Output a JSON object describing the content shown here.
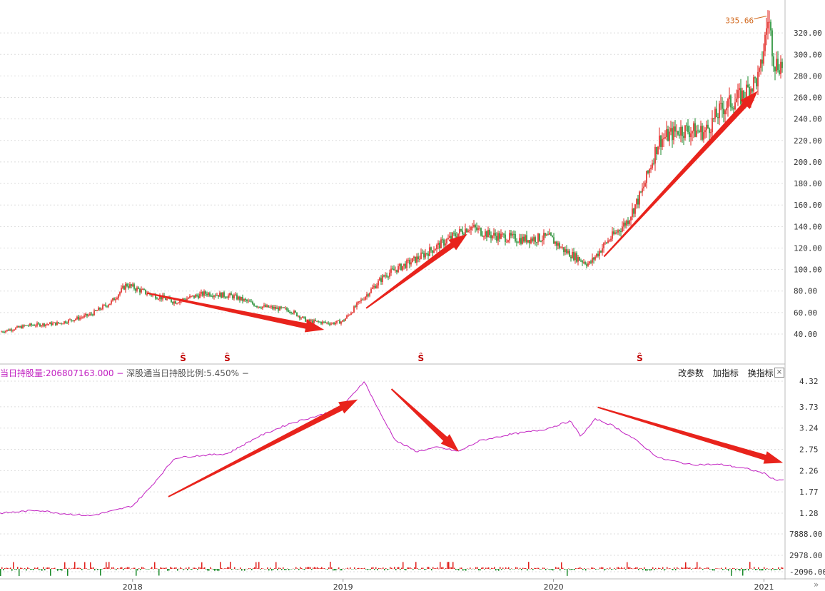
{
  "chart_data": [
    {
      "type": "candlestick",
      "yticks": [
        "320.00",
        "300.00",
        "280.00",
        "260.00",
        "240.00",
        "220.00",
        "200.00",
        "180.00",
        "160.00",
        "140.00",
        "120.00",
        "100.00",
        "80.00",
        "60.00",
        "40.00"
      ],
      "max_label": "335.66",
      "marker_symbol": "Ŝ",
      "markers_year": [
        2018.24,
        2018.45,
        2019.37,
        2020.41
      ],
      "series": [
        {
          "anchors": [
            [
              2017.37,
              42
            ],
            [
              2017.5,
              48
            ],
            [
              2017.65,
              50
            ],
            [
              2017.8,
              58
            ],
            [
              2017.9,
              70
            ],
            [
              2017.97,
              86
            ],
            [
              2018.07,
              78
            ],
            [
              2018.2,
              70
            ],
            [
              2018.35,
              78
            ],
            [
              2018.48,
              75
            ],
            [
              2018.6,
              66
            ],
            [
              2018.75,
              62
            ],
            [
              2018.83,
              52
            ],
            [
              2018.95,
              50
            ],
            [
              2019.0,
              52
            ],
            [
              2019.08,
              70
            ],
            [
              2019.2,
              95
            ],
            [
              2019.35,
              110
            ],
            [
              2019.5,
              128
            ],
            [
              2019.6,
              140
            ],
            [
              2019.7,
              132
            ],
            [
              2019.85,
              128
            ],
            [
              2019.98,
              130
            ],
            [
              2020.05,
              118
            ],
            [
              2020.12,
              110
            ],
            [
              2020.17,
              105
            ],
            [
              2020.25,
              125
            ],
            [
              2020.35,
              145
            ],
            [
              2020.42,
              172
            ],
            [
              2020.5,
              220
            ],
            [
              2020.6,
              230
            ],
            [
              2020.72,
              228
            ],
            [
              2020.8,
              250
            ],
            [
              2020.9,
              262
            ],
            [
              2020.98,
              280
            ],
            [
              2021.02,
              335.66
            ],
            [
              2021.05,
              292
            ],
            [
              2021.1,
              290
            ]
          ]
        }
      ],
      "arrows": [
        {
          "from": [
            2018.07,
            78
          ],
          "to": [
            2018.91,
            44
          ]
        },
        {
          "from": [
            2019.11,
            64
          ],
          "to": [
            2019.59,
            133
          ]
        },
        {
          "from": [
            2020.24,
            112
          ],
          "to": [
            2020.97,
            266
          ]
        }
      ]
    },
    {
      "type": "line",
      "legend_label": "当日持股量:",
      "legend_value": "206807163.000",
      "legend_sep1": " − ",
      "legend_label2": "深股通当日持股比例:",
      "legend_value2": "5.450%",
      "legend_sep2": " −",
      "yticks": [
        "4.32",
        "3.73",
        "3.24",
        "2.75",
        "2.26",
        "1.77",
        "1.28"
      ],
      "series": [
        {
          "name": "深股通当日持股比例",
          "color": "#c11fc1",
          "anchors": [
            [
              2017.37,
              1.28
            ],
            [
              2017.55,
              1.35
            ],
            [
              2017.65,
              1.28
            ],
            [
              2017.8,
              1.22
            ],
            [
              2017.92,
              1.35
            ],
            [
              2018.0,
              1.45
            ],
            [
              2018.08,
              1.85
            ],
            [
              2018.2,
              2.55
            ],
            [
              2018.3,
              2.6
            ],
            [
              2018.45,
              2.65
            ],
            [
              2018.6,
              3.05
            ],
            [
              2018.75,
              3.35
            ],
            [
              2018.9,
              3.55
            ],
            [
              2019.0,
              3.75
            ],
            [
              2019.1,
              4.32
            ],
            [
              2019.18,
              3.55
            ],
            [
              2019.25,
              2.95
            ],
            [
              2019.35,
              2.7
            ],
            [
              2019.45,
              2.8
            ],
            [
              2019.55,
              2.7
            ],
            [
              2019.65,
              2.95
            ],
            [
              2019.8,
              3.1
            ],
            [
              2019.95,
              3.2
            ],
            [
              2020.08,
              3.4
            ],
            [
              2020.13,
              3.05
            ],
            [
              2020.2,
              3.45
            ],
            [
              2020.28,
              3.3
            ],
            [
              2020.38,
              3.0
            ],
            [
              2020.5,
              2.55
            ],
            [
              2020.65,
              2.4
            ],
            [
              2020.8,
              2.4
            ],
            [
              2020.92,
              2.3
            ],
            [
              2021.0,
              2.2
            ],
            [
              2021.05,
              2.05
            ]
          ]
        }
      ],
      "arrows": [
        {
          "from": [
            2018.17,
            1.66
          ],
          "to": [
            2019.07,
            3.9
          ]
        },
        {
          "from": [
            2019.23,
            4.14
          ],
          "to": [
            2019.55,
            2.7
          ]
        },
        {
          "from": [
            2020.21,
            3.72
          ],
          "to": [
            2021.09,
            2.44
          ]
        }
      ]
    },
    {
      "type": "bar",
      "yticks": [
        "7888.00",
        "2978.00",
        "-2096.00"
      ]
    }
  ],
  "x_axis": {
    "labels": [
      "2018",
      "2019",
      "2020",
      "2021"
    ],
    "year_positions": [
      2018.0,
      2019.0,
      2020.0,
      2021.0
    ]
  },
  "toolbar": {
    "params": "改参数",
    "add": "加指标",
    "swap": "换指标",
    "close": "×"
  },
  "colors": {
    "up": "#e0211c",
    "down": "#1a8a2a",
    "accent": "#e8231c",
    "line": "#c11fc1",
    "max_label": "#d2691e"
  },
  "expand_icon": "»"
}
